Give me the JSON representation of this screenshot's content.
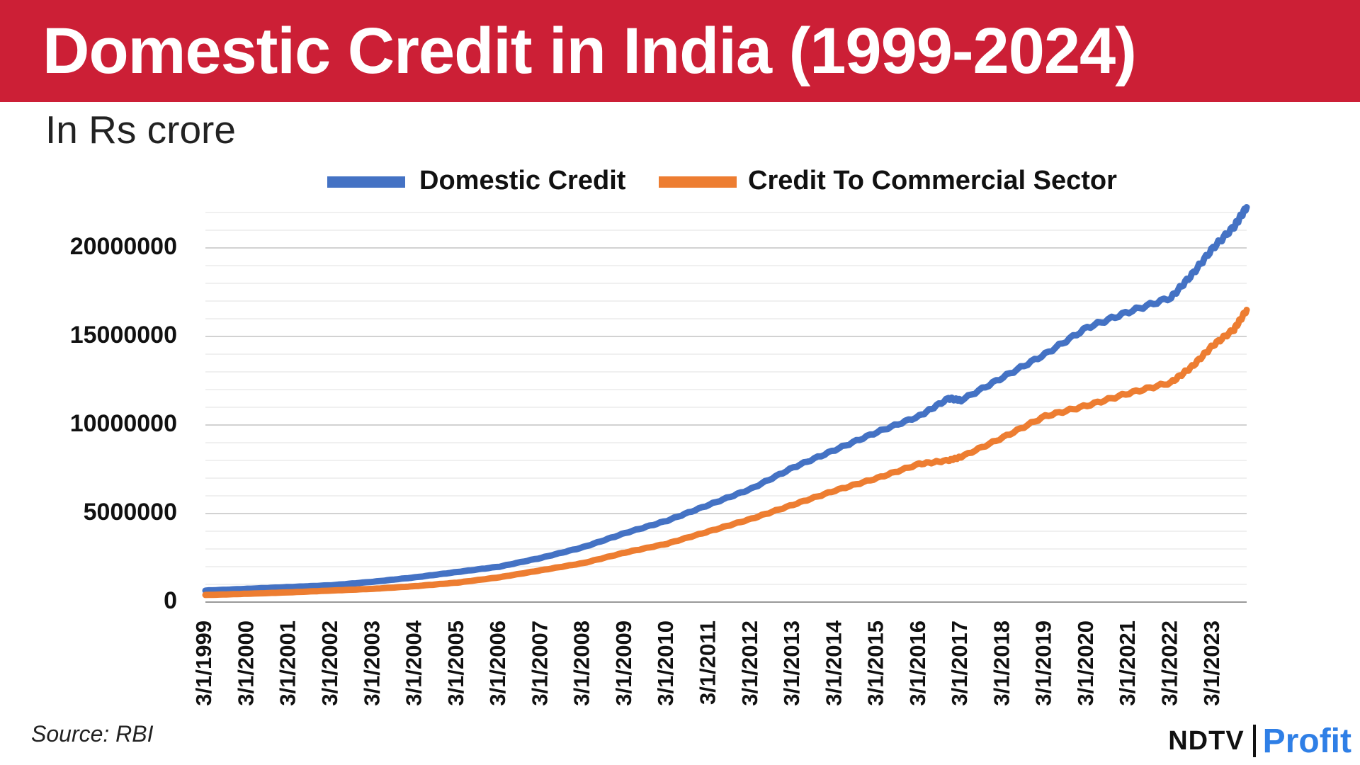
{
  "header": {
    "title": "Domestic Credit in India (1999-2024)",
    "subtitle": "In Rs crore"
  },
  "footer": {
    "source": "Source: RBI",
    "logo_primary": "NDTV",
    "logo_secondary": "Profit"
  },
  "colors": {
    "title_bar": "#cc1f36",
    "domestic_credit": "#4472c4",
    "commercial_credit": "#ed7d31"
  },
  "chart_data": {
    "type": "line",
    "title": "Domestic Credit in India (1999-2024)",
    "ylabel": "In Rs crore",
    "xlabel": "",
    "ylim": [
      0,
      22000000
    ],
    "yticks": [
      0,
      5000000,
      10000000,
      15000000,
      20000000
    ],
    "ytick_labels": [
      "0",
      "5000000",
      "10000000",
      "15000000",
      "20000000"
    ],
    "xlim": [
      1999,
      2023.8
    ],
    "xticks": [
      1999,
      2000,
      2001,
      2002,
      2003,
      2004,
      2005,
      2006,
      2007,
      2008,
      2009,
      2010,
      2011,
      2012,
      2013,
      2014,
      2015,
      2016,
      2017,
      2018,
      2019,
      2020,
      2021,
      2022,
      2023
    ],
    "xtick_labels": [
      "3/1/1999",
      "3/1/2000",
      "3/1/2001",
      "3/1/2002",
      "3/1/2003",
      "3/1/2004",
      "3/1/2005",
      "3/1/2006",
      "3/1/2007",
      "3/1/2008",
      "3/1/2009",
      "3/1/2010",
      "3/1/2011",
      "3/1/2012",
      "3/1/2013",
      "3/1/2014",
      "3/1/2015",
      "3/1/2016",
      "3/1/2017",
      "3/1/2018",
      "3/1/2019",
      "3/1/2020",
      "3/1/2021",
      "3/1/2022",
      "3/1/2023"
    ],
    "legend_position": "top-center",
    "grid": true,
    "x": [
      1999,
      2000,
      2001,
      2002,
      2003,
      2004,
      2005,
      2006,
      2007,
      2008,
      2009,
      2010,
      2011,
      2012,
      2013,
      2014,
      2015,
      2016,
      2016.7,
      2017,
      2018,
      2019,
      2020,
      2021,
      2022,
      2022.5,
      2023,
      2023.5,
      2023.8
    ],
    "series": [
      {
        "name": "Domestic Credit",
        "values": [
          650000,
          750000,
          850000,
          950000,
          1150000,
          1400000,
          1700000,
          2000000,
          2500000,
          3100000,
          3900000,
          4600000,
          5500000,
          6400000,
          7600000,
          8600000,
          9600000,
          10500000,
          11500000,
          11400000,
          12700000,
          14000000,
          15500000,
          16400000,
          17200000,
          18500000,
          20000000,
          21200000,
          22300000
        ]
      },
      {
        "name": "Credit To Commercial Sector",
        "values": [
          400000,
          470000,
          550000,
          650000,
          750000,
          900000,
          1100000,
          1400000,
          1800000,
          2200000,
          2800000,
          3300000,
          4000000,
          4700000,
          5500000,
          6300000,
          7000000,
          7800000,
          8000000,
          8200000,
          9300000,
          10500000,
          11100000,
          11800000,
          12400000,
          13300000,
          14500000,
          15400000,
          16500000
        ]
      }
    ]
  }
}
